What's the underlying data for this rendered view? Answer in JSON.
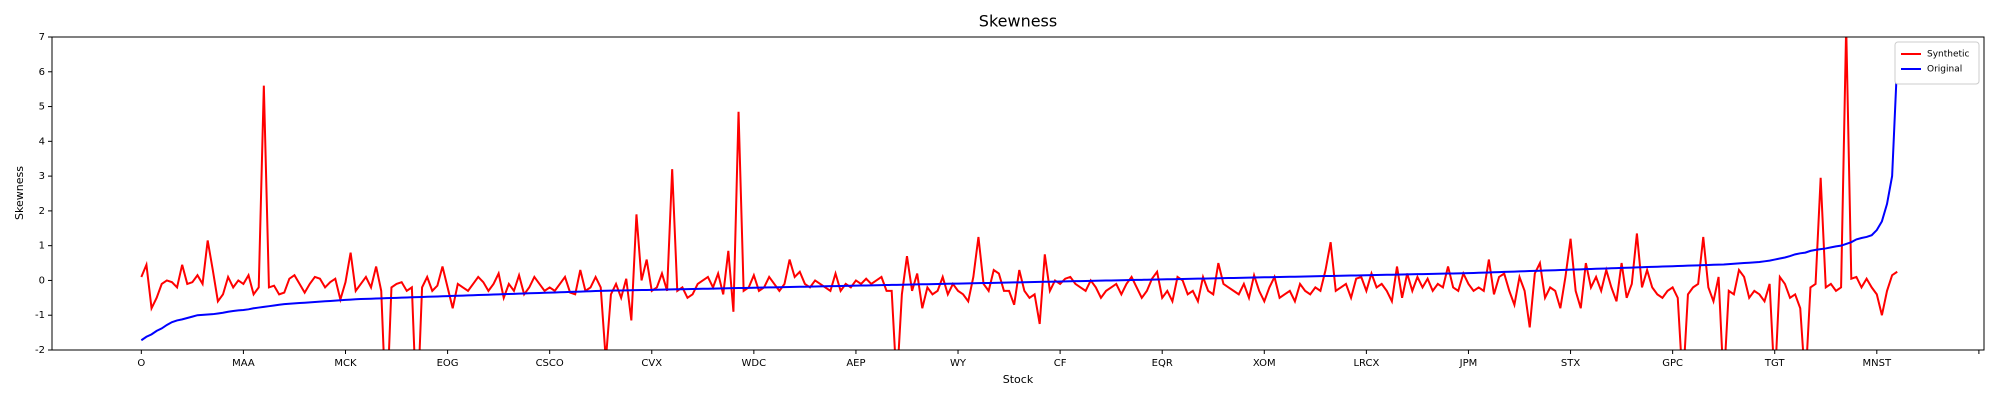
{
  "chart_data": {
    "type": "line",
    "title": "Skewness",
    "xlabel": "Stock",
    "ylabel": "Skewness",
    "xlim": [
      -17.5,
      361
    ],
    "xticks": [
      {
        "value": 0,
        "label": "O"
      },
      {
        "value": 20,
        "label": "MAA"
      },
      {
        "value": 40,
        "label": "MCK"
      },
      {
        "value": 60,
        "label": "EOG"
      },
      {
        "value": 80,
        "label": "CSCO"
      },
      {
        "value": 100,
        "label": "CVX"
      },
      {
        "value": 120,
        "label": "WDC"
      },
      {
        "value": 140,
        "label": "AEP"
      },
      {
        "value": 160,
        "label": "WY"
      },
      {
        "value": 180,
        "label": "CF"
      },
      {
        "value": 200,
        "label": "EQR"
      },
      {
        "value": 220,
        "label": "XOM"
      },
      {
        "value": 240,
        "label": "LRCX"
      },
      {
        "value": 260,
        "label": "JPM"
      },
      {
        "value": 280,
        "label": "STX"
      },
      {
        "value": 300,
        "label": "GPC"
      },
      {
        "value": 320,
        "label": "TGT"
      },
      {
        "value": 340,
        "label": "MNST"
      },
      {
        "value": 360,
        "label": ""
      }
    ],
    "ylim": [
      -2,
      7
    ],
    "yticks": [
      -2,
      -1,
      0,
      1,
      2,
      3,
      4,
      5,
      6,
      7
    ],
    "legend": "upper right",
    "series": [
      {
        "name": "Synthetic",
        "color": "#ff0000",
        "values": [
          0.1,
          0.45,
          -0.8,
          -0.5,
          -0.1,
          0,
          -0.05,
          -0.2,
          0.45,
          -0.1,
          -0.05,
          0.15,
          -0.1,
          1.15,
          0.3,
          -0.6,
          -0.4,
          0.1,
          -0.2,
          0,
          -0.1,
          0.15,
          -0.4,
          -0.2,
          5.6,
          -0.2,
          -0.15,
          -0.4,
          -0.35,
          0.05,
          0.15,
          -0.1,
          -0.35,
          -0.1,
          0.1,
          0.05,
          -0.2,
          -0.05,
          0.05,
          -0.55,
          -0.05,
          0.8,
          -0.3,
          -0.1,
          0.1,
          -0.2,
          0.4,
          -0.3,
          -4,
          -0.2,
          -0.1,
          -0.05,
          -0.3,
          -0.2,
          -4,
          -0.2,
          0.1,
          -0.3,
          -0.15,
          0.4,
          -0.2,
          -0.8,
          -0.1,
          -0.2,
          -0.3,
          -0.1,
          0.1,
          -0.05,
          -0.3,
          -0.1,
          0.2,
          -0.5,
          -0.1,
          -0.3,
          0.15,
          -0.4,
          -0.2,
          0.1,
          -0.1,
          -0.3,
          -0.2,
          -0.3,
          -0.1,
          0.1,
          -0.35,
          -0.4,
          0.3,
          -0.3,
          -0.2,
          0.1,
          -0.2,
          -2.3,
          -0.4,
          -0.1,
          -0.5,
          0.05,
          -1.15,
          1.9,
          0,
          0.6,
          -0.3,
          -0.2,
          0.2,
          -0.3,
          3.2,
          -0.3,
          -0.2,
          -0.5,
          -0.4,
          -0.1,
          0,
          0.1,
          -0.2,
          0.2,
          -0.4,
          0.85,
          -0.9,
          4.85,
          -0.3,
          -0.2,
          0.15,
          -0.3,
          -0.2,
          0.1,
          -0.1,
          -0.3,
          -0.1,
          0.6,
          0.1,
          0.25,
          -0.1,
          -0.2,
          0,
          -0.1,
          -0.2,
          -0.3,
          0.2,
          -0.3,
          -0.1,
          -0.2,
          0,
          -0.1,
          0.05,
          -0.1,
          0,
          0.1,
          -0.3,
          -0.3,
          -3,
          -0.4,
          0.7,
          -0.3,
          0.2,
          -0.8,
          -0.2,
          -0.4,
          -0.3,
          0.1,
          -0.4,
          -0.1,
          -0.3,
          -0.4,
          -0.6,
          0.1,
          1.25,
          -0.1,
          -0.3,
          0.3,
          0.2,
          -0.3,
          -0.3,
          -0.7,
          0.3,
          -0.3,
          -0.5,
          -0.4,
          -1.25,
          0.75,
          -0.3,
          0,
          -0.1,
          0.05,
          0.1,
          -0.1,
          -0.2,
          -0.3,
          0,
          -0.2,
          -0.5,
          -0.3,
          -0.2,
          -0.1,
          -0.4,
          -0.1,
          0.1,
          -0.2,
          -0.5,
          -0.3,
          0.05,
          0.25,
          -0.5,
          -0.3,
          -0.6,
          0.1,
          0,
          -0.4,
          -0.3,
          -0.6,
          0.1,
          -0.3,
          -0.4,
          0.5,
          -0.1,
          -0.2,
          -0.3,
          -0.4,
          -0.1,
          -0.5,
          0.15,
          -0.3,
          -0.6,
          -0.2,
          0.1,
          -0.5,
          -0.4,
          -0.3,
          -0.6,
          -0.1,
          -0.3,
          -0.4,
          -0.2,
          -0.3,
          0.3,
          1.1,
          -0.3,
          -0.2,
          -0.1,
          -0.5,
          0.05,
          0.1,
          -0.3,
          0.2,
          -0.2,
          -0.1,
          -0.3,
          -0.6,
          0.4,
          -0.5,
          0.2,
          -0.3,
          0.1,
          -0.2,
          0.05,
          -0.3,
          -0.1,
          -0.2,
          0.4,
          -0.2,
          -0.3,
          0.2,
          -0.1,
          -0.3,
          -0.2,
          -0.3,
          0.6,
          -0.4,
          0.1,
          0.2,
          -0.3,
          -0.7,
          0.1,
          -0.3,
          -1.35,
          0.2,
          0.5,
          -0.5,
          -0.2,
          -0.3,
          -0.8,
          0.1,
          1.2,
          -0.3,
          -0.8,
          0.5,
          -0.2,
          0.1,
          -0.3,
          0.3,
          -0.2,
          -0.6,
          0.5,
          -0.5,
          -0.1,
          1.35,
          -0.2,
          0.3,
          -0.2,
          -0.4,
          -0.5,
          -0.3,
          -0.2,
          -0.5,
          -3,
          -0.4,
          -0.2,
          -0.1,
          1.25,
          -0.2,
          -0.6,
          0.1,
          -3,
          -0.3,
          -0.4,
          0.3,
          0.1,
          -0.5,
          -0.3,
          -0.4,
          -0.6,
          -0.1,
          -3,
          0.1,
          -0.1,
          -0.5,
          -0.4,
          -0.8,
          -3,
          -0.2,
          -0.1,
          2.95,
          -0.2,
          -0.1,
          -0.3,
          -0.2,
          7.3,
          0.05,
          0.1,
          -0.2,
          0.05,
          -0.2,
          -0.4,
          -1,
          -0.3,
          0.15,
          0.25
        ]
      },
      {
        "name": "Original",
        "color": "#0000ff",
        "values": [
          -1.72,
          -1.62,
          -1.55,
          -1.45,
          -1.38,
          -1.28,
          -1.2,
          -1.15,
          -1.12,
          -1.08,
          -1.04,
          -1.0,
          -0.99,
          -0.98,
          -0.97,
          -0.95,
          -0.93,
          -0.9,
          -0.88,
          -0.86,
          -0.85,
          -0.83,
          -0.8,
          -0.78,
          -0.76,
          -0.74,
          -0.72,
          -0.7,
          -0.68,
          -0.67,
          -0.66,
          -0.65,
          -0.64,
          -0.63,
          -0.62,
          -0.61,
          -0.6,
          -0.59,
          -0.58,
          -0.57,
          -0.56,
          -0.55,
          -0.54,
          -0.535,
          -0.53,
          -0.525,
          -0.52,
          -0.515,
          -0.51,
          -0.505,
          -0.5,
          -0.495,
          -0.49,
          -0.485,
          -0.48,
          -0.475,
          -0.47,
          -0.465,
          -0.46,
          -0.455,
          -0.45,
          -0.445,
          -0.44,
          -0.435,
          -0.43,
          -0.425,
          -0.42,
          -0.415,
          -0.41,
          -0.405,
          -0.4,
          -0.395,
          -0.39,
          -0.385,
          -0.38,
          -0.375,
          -0.37,
          -0.365,
          -0.36,
          -0.355,
          -0.35,
          -0.345,
          -0.34,
          -0.335,
          -0.33,
          -0.325,
          -0.32,
          -0.315,
          -0.31,
          -0.305,
          -0.3,
          -0.297,
          -0.294,
          -0.291,
          -0.288,
          -0.285,
          -0.282,
          -0.279,
          -0.276,
          -0.273,
          -0.27,
          -0.267,
          -0.264,
          -0.261,
          -0.258,
          -0.255,
          -0.252,
          -0.249,
          -0.246,
          -0.243,
          -0.24,
          -0.237,
          -0.234,
          -0.231,
          -0.228,
          -0.225,
          -0.222,
          -0.219,
          -0.216,
          -0.213,
          -0.21,
          -0.207,
          -0.204,
          -0.201,
          -0.198,
          -0.195,
          -0.192,
          -0.189,
          -0.186,
          -0.183,
          -0.18,
          -0.177,
          -0.174,
          -0.171,
          -0.168,
          -0.165,
          -0.162,
          -0.159,
          -0.156,
          -0.153,
          -0.15,
          -0.147,
          -0.144,
          -0.141,
          -0.138,
          -0.135,
          -0.132,
          -0.129,
          -0.126,
          -0.123,
          -0.12,
          -0.117,
          -0.114,
          -0.111,
          -0.108,
          -0.105,
          -0.102,
          -0.099,
          -0.096,
          -0.093,
          -0.09,
          -0.087,
          -0.084,
          -0.081,
          -0.078,
          -0.075,
          -0.072,
          -0.069,
          -0.066,
          -0.063,
          -0.06,
          -0.057,
          -0.054,
          -0.051,
          -0.048,
          -0.045,
          -0.042,
          -0.039,
          -0.036,
          -0.033,
          -0.03,
          -0.027,
          -0.024,
          -0.021,
          -0.018,
          -0.015,
          -0.012,
          -0.009,
          -0.006,
          -0.003,
          0,
          0.003,
          0.006,
          0.009,
          0.012,
          0.015,
          0.018,
          0.021,
          0.024,
          0.027,
          0.03,
          0.033,
          0.036,
          0.039,
          0.042,
          0.045,
          0.048,
          0.051,
          0.054,
          0.057,
          0.06,
          0.063,
          0.066,
          0.069,
          0.072,
          0.075,
          0.078,
          0.081,
          0.084,
          0.087,
          0.09,
          0.093,
          0.096,
          0.099,
          0.102,
          0.105,
          0.108,
          0.111,
          0.114,
          0.117,
          0.12,
          0.123,
          0.126,
          0.129,
          0.132,
          0.135,
          0.138,
          0.141,
          0.144,
          0.147,
          0.15,
          0.153,
          0.156,
          0.159,
          0.162,
          0.165,
          0.168,
          0.171,
          0.174,
          0.177,
          0.18,
          0.183,
          0.186,
          0.189,
          0.192,
          0.195,
          0.198,
          0.201,
          0.204,
          0.207,
          0.21,
          0.215,
          0.22,
          0.225,
          0.23,
          0.235,
          0.24,
          0.245,
          0.25,
          0.255,
          0.26,
          0.265,
          0.27,
          0.275,
          0.28,
          0.285,
          0.29,
          0.295,
          0.3,
          0.305,
          0.31,
          0.315,
          0.32,
          0.325,
          0.33,
          0.335,
          0.34,
          0.345,
          0.35,
          0.355,
          0.36,
          0.365,
          0.37,
          0.375,
          0.38,
          0.385,
          0.39,
          0.395,
          0.4,
          0.405,
          0.41,
          0.415,
          0.42,
          0.425,
          0.43,
          0.435,
          0.44,
          0.445,
          0.45,
          0.455,
          0.46,
          0.47,
          0.48,
          0.49,
          0.5,
          0.51,
          0.52,
          0.53,
          0.55,
          0.57,
          0.6,
          0.63,
          0.66,
          0.7,
          0.75,
          0.78,
          0.8,
          0.85,
          0.88,
          0.9,
          0.92,
          0.95,
          0.98,
          1.0,
          1.05,
          1.1,
          1.18,
          1.22,
          1.25,
          1.3,
          1.45,
          1.7,
          2.2,
          3.0,
          6.3
        ]
      }
    ]
  }
}
